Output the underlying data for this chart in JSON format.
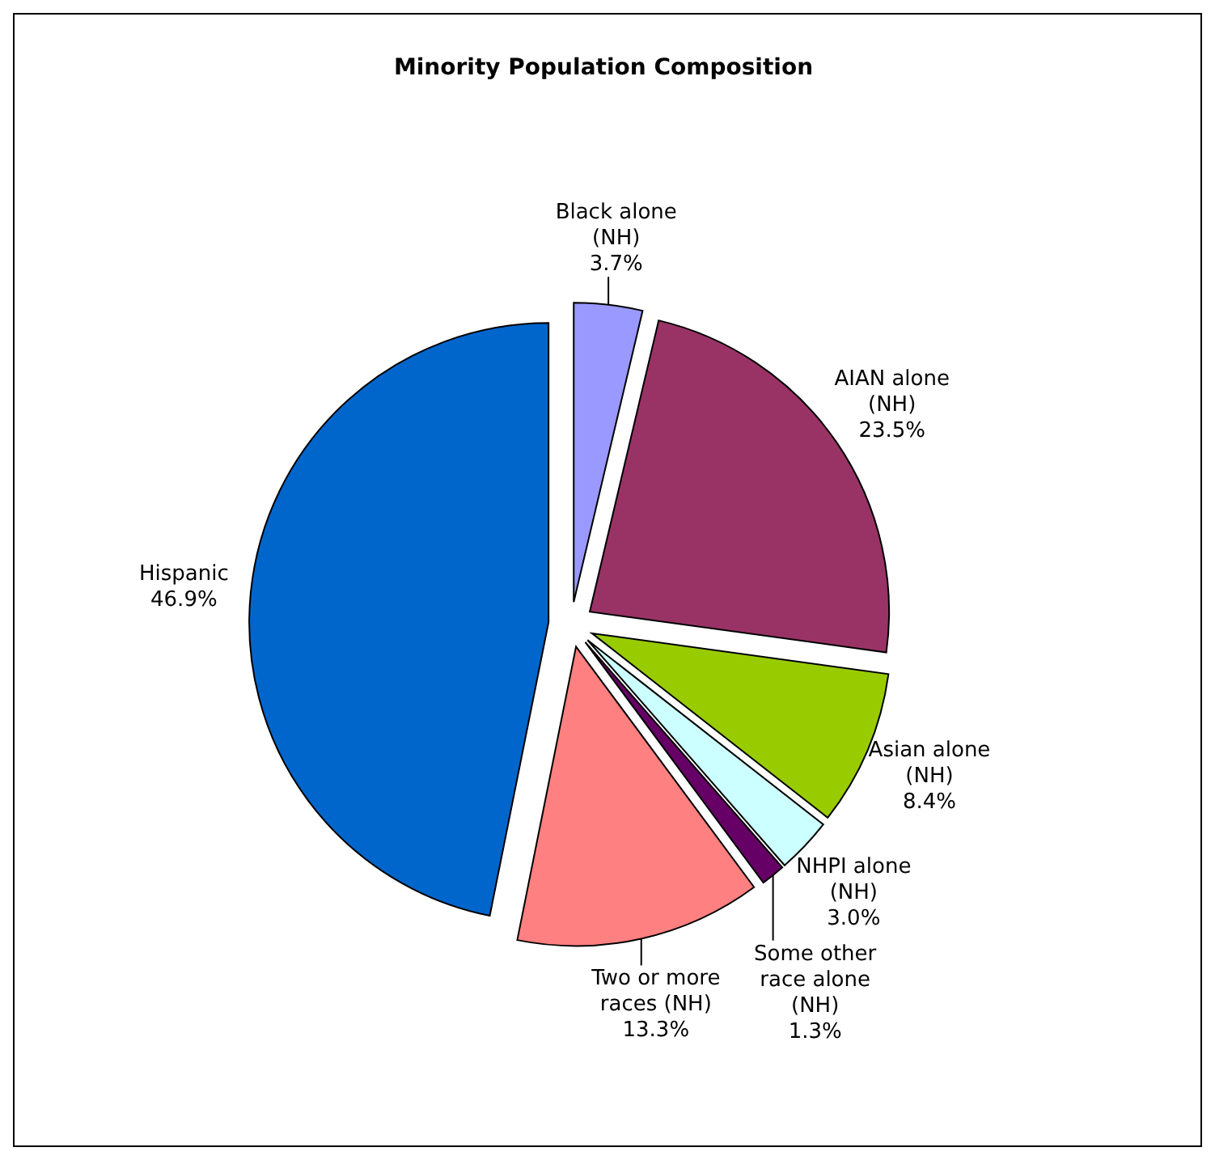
{
  "chart_data": {
    "type": "pie",
    "title": "Minority Population Composition",
    "categories": [
      "Black alone (NH)",
      "AIAN alone (NH)",
      "Asian alone (NH)",
      "NHPI alone (NH)",
      "Some other race alone (NH)",
      "Two or more races (NH)",
      "Hispanic"
    ],
    "values": [
      3.7,
      23.5,
      8.4,
      3.0,
      1.3,
      13.3,
      46.9
    ],
    "colors": [
      "#9999ff",
      "#993366",
      "#99cc00",
      "#ccffff",
      "#660066",
      "#ff8080",
      "#0066cc"
    ],
    "value_labels": [
      "3.7%",
      "23.5%",
      "8.4%",
      "3.0%",
      "1.3%",
      "13.3%",
      "46.9%"
    ]
  }
}
